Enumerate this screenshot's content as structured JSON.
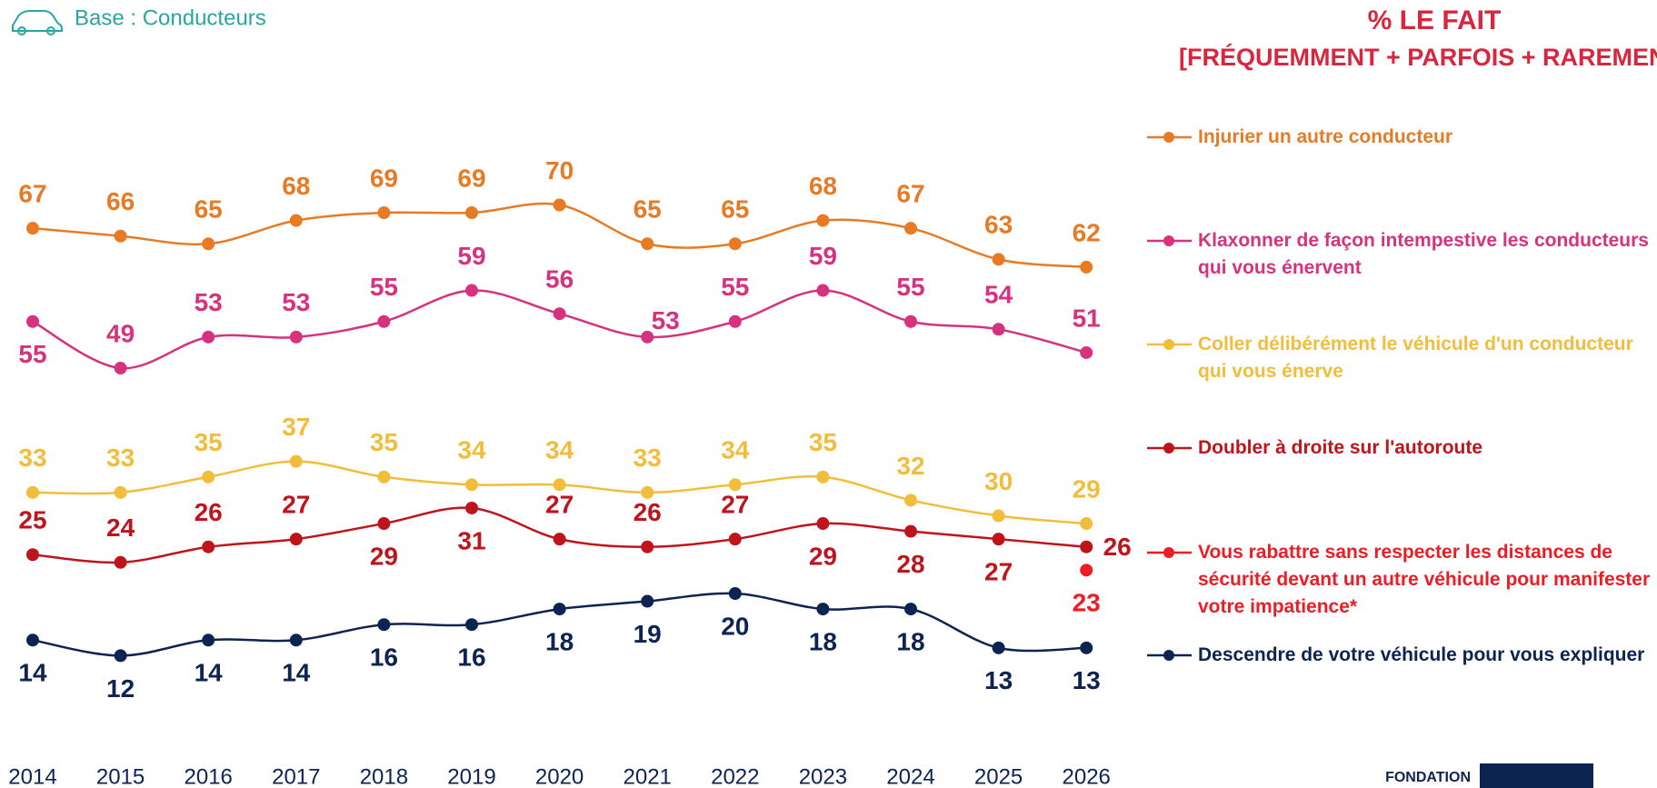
{
  "chart_data": {
    "type": "line",
    "subtitle": "Base : Conducteurs",
    "header": "% LE FAIT",
    "header_sub": "[FRÉQUEMMENT + PARFOIS + RAREMENT]",
    "logo": "FONDATION",
    "categories": [
      "2014",
      "2015",
      "2016",
      "2017",
      "2018",
      "2019",
      "2020",
      "2021",
      "2022",
      "2023",
      "2024",
      "2025",
      "2026"
    ],
    "ylim": [
      0,
      100
    ],
    "series": [
      {
        "name": "Injurier un autre conducteur",
        "color": "#e87a24",
        "values": [
          67,
          66,
          65,
          68,
          69,
          69,
          70,
          65,
          65,
          68,
          67,
          63,
          62
        ]
      },
      {
        "name": "Klaxonner de façon intempestive les conducteurs qui vous énervent",
        "color": "#d6327f",
        "values": [
          55,
          49,
          53,
          53,
          55,
          59,
          56,
          53,
          55,
          59,
          55,
          54,
          51
        ]
      },
      {
        "name": "Coller délibérément le véhicule d'un conducteur qui vous énerve",
        "color": "#f2bd3a",
        "values": [
          33,
          33,
          35,
          37,
          35,
          34,
          34,
          33,
          34,
          35,
          32,
          30,
          29
        ]
      },
      {
        "name": "Doubler à droite sur l'autoroute",
        "color": "#c0141c",
        "values": [
          25,
          24,
          26,
          27,
          29,
          31,
          27,
          26,
          27,
          29,
          28,
          27,
          26
        ]
      },
      {
        "name": "Vous rabattre sans respecter les distances de sécurité devant un autre véhicule pour manifester votre impatience*",
        "color": "#ee1c25",
        "values": [
          null,
          null,
          null,
          null,
          null,
          null,
          null,
          null,
          null,
          null,
          null,
          null,
          23
        ]
      },
      {
        "name": "Descendre de votre véhicule pour vous expliquer",
        "color": "#0d2452",
        "values": [
          14,
          12,
          14,
          14,
          16,
          16,
          18,
          19,
          20,
          18,
          18,
          13,
          13
        ]
      }
    ]
  }
}
